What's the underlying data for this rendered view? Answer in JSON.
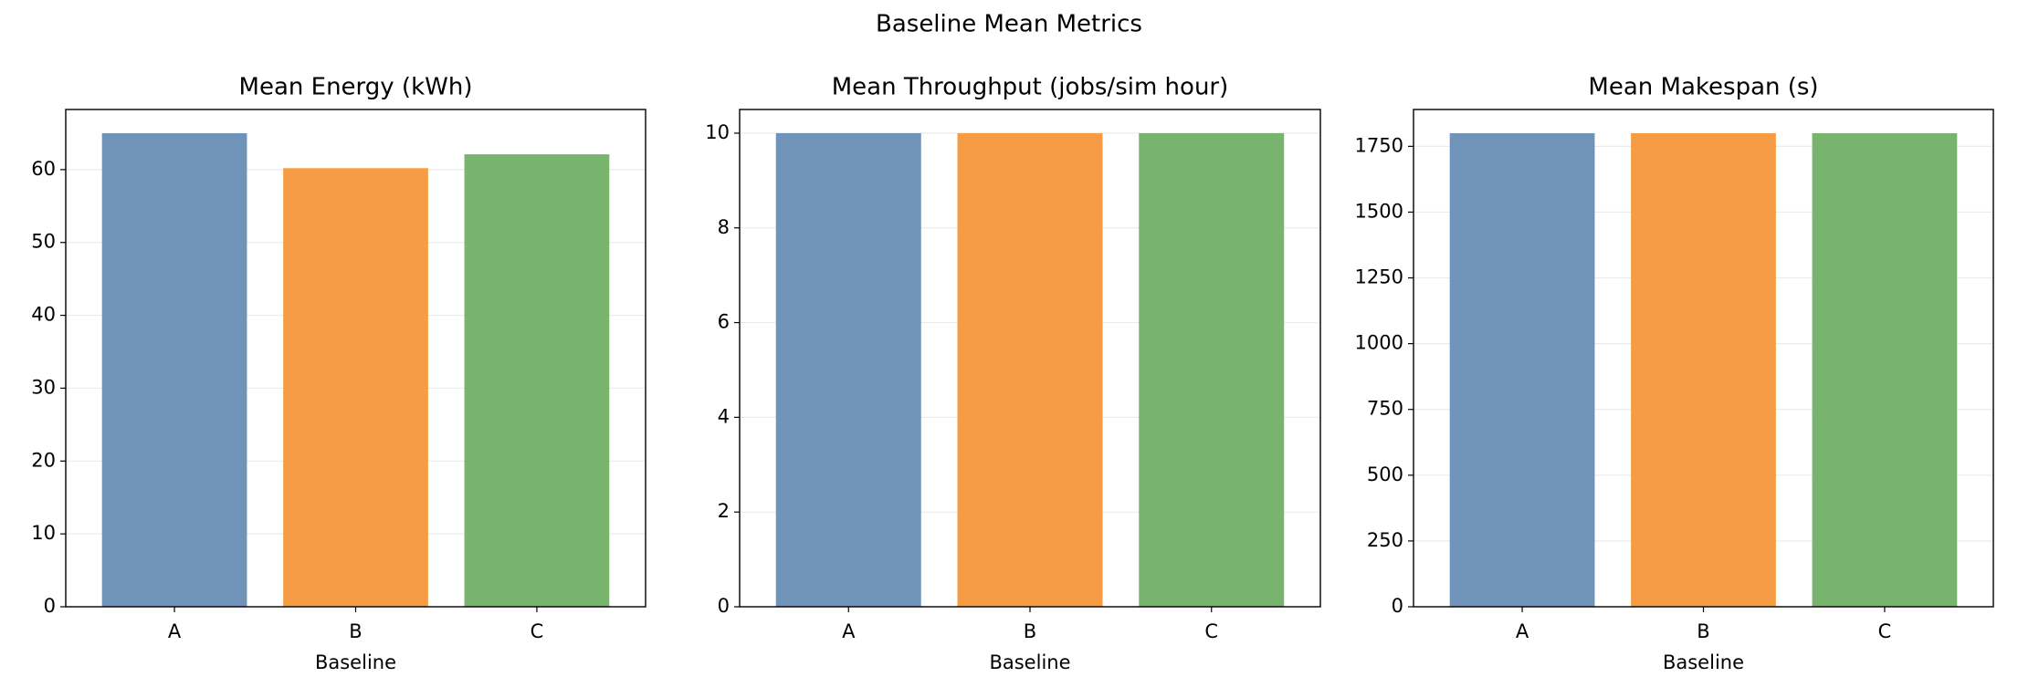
{
  "title": "Baseline Mean Metrics",
  "chart_data": [
    {
      "type": "bar",
      "title": "Mean Energy (kWh)",
      "xlabel": "Baseline",
      "categories": [
        "A",
        "B",
        "C"
      ],
      "values": [
        65,
        60.2,
        62.1
      ],
      "colors": [
        "#7093ba",
        "#f59c45",
        "#79b46e"
      ],
      "ylim": [
        0,
        68.25
      ],
      "yticks": [
        0,
        10,
        20,
        30,
        40,
        50,
        60
      ],
      "grid": true
    },
    {
      "type": "bar",
      "title": "Mean Throughput (jobs/sim hour)",
      "xlabel": "Baseline",
      "categories": [
        "A",
        "B",
        "C"
      ],
      "values": [
        10,
        10,
        10
      ],
      "colors": [
        "#7093ba",
        "#f59c45",
        "#79b46e"
      ],
      "ylim": [
        0,
        10.5
      ],
      "yticks": [
        0,
        2,
        4,
        6,
        8,
        10
      ],
      "grid": true
    },
    {
      "type": "bar",
      "title": "Mean Makespan (s)",
      "xlabel": "Baseline",
      "categories": [
        "A",
        "B",
        "C"
      ],
      "values": [
        1800,
        1800,
        1800
      ],
      "colors": [
        "#7093ba",
        "#f59c45",
        "#79b46e"
      ],
      "ylim": [
        0,
        1890
      ],
      "yticks": [
        0,
        250,
        500,
        750,
        1000,
        1250,
        1500,
        1750
      ],
      "grid": true
    }
  ]
}
